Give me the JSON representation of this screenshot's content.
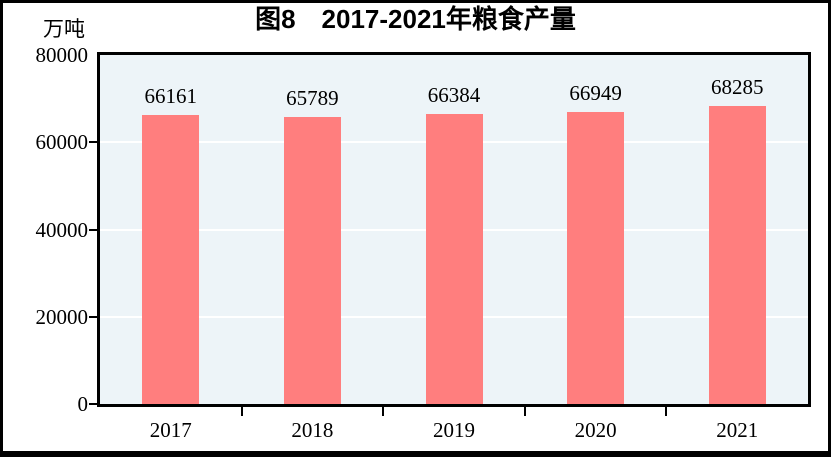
{
  "chart_data": {
    "type": "bar",
    "title": "图8　2017-2021年粮食产量",
    "unit_label": "万吨",
    "categories": [
      "2017",
      "2018",
      "2019",
      "2020",
      "2021"
    ],
    "values": [
      66161,
      65789,
      66384,
      66949,
      68285
    ],
    "value_labels": [
      "66161",
      "65789",
      "66384",
      "66949",
      "68285"
    ],
    "xlabel": "",
    "ylabel": "万吨",
    "ylim": [
      0,
      80000
    ],
    "yticks": [
      {
        "value": 0,
        "label": "0"
      },
      {
        "value": 20000,
        "label": "20000"
      },
      {
        "value": 40000,
        "label": "40000"
      },
      {
        "value": 60000,
        "label": "60000"
      },
      {
        "value": 80000,
        "label": "80000"
      }
    ],
    "grid": true,
    "legend_position": "none",
    "colors": {
      "bar": "#FF7E7E",
      "plot_bg": "#EDF4F8",
      "gridline": "#FFFFFF",
      "axis": "#000000",
      "text": "#000000"
    }
  }
}
